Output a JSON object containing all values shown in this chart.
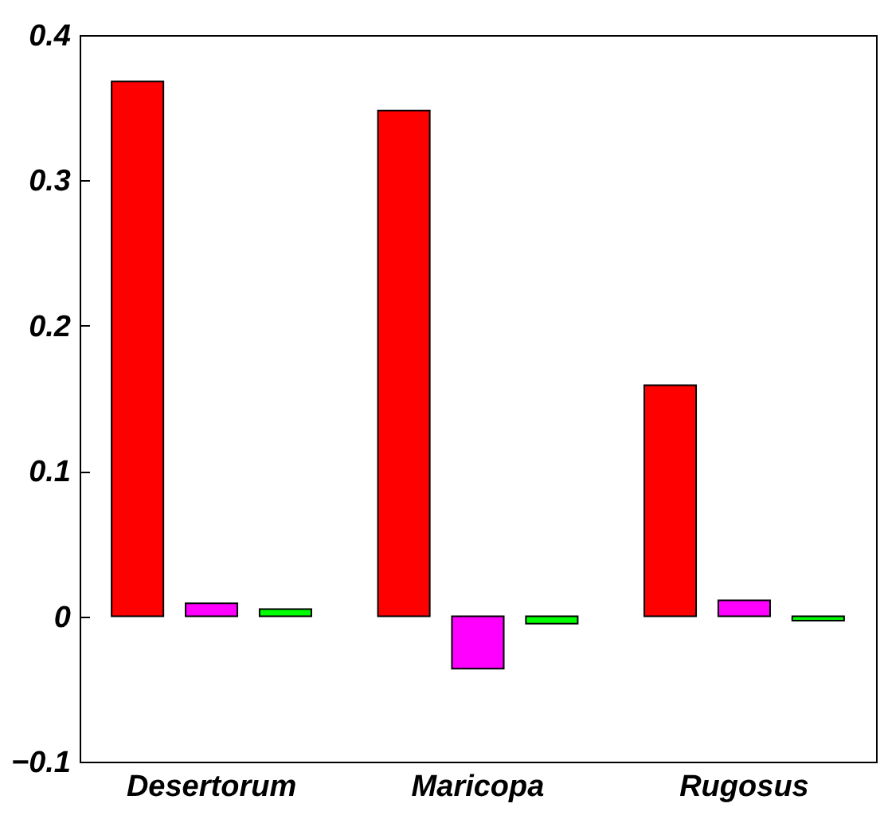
{
  "chart_data": {
    "type": "bar",
    "categories": [
      "Desertorum",
      "Maricopa",
      "Rugosus"
    ],
    "series": [
      {
        "color": "#ff0000",
        "values": [
          0.368,
          0.348,
          0.159
        ]
      },
      {
        "color": "#ff00ff",
        "values": [
          0.009,
          -0.036,
          0.011
        ]
      },
      {
        "color": "#00ff00",
        "values": [
          0.005,
          -0.005,
          -0.003
        ]
      }
    ],
    "ylim": [
      -0.1,
      0.4
    ],
    "yticks": [
      -0.1,
      0,
      0.1,
      0.2,
      0.3,
      0.4
    ]
  }
}
